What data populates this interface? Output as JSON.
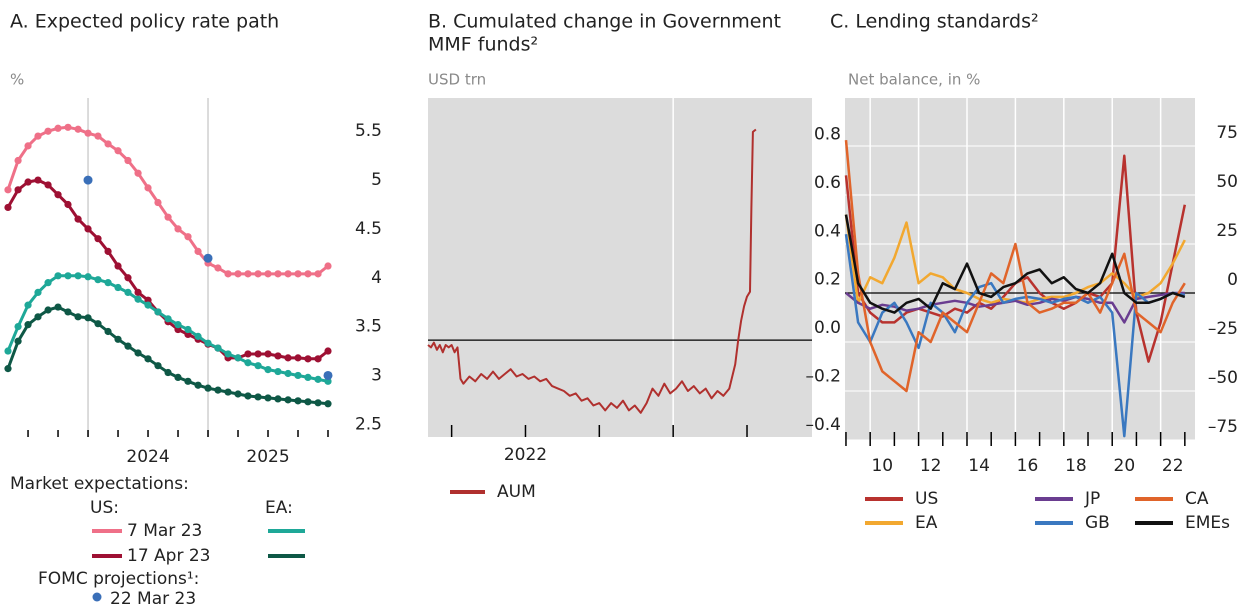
{
  "chart_data": [
    {
      "type": "line",
      "title": [
        "A.  Expected policy rate path"
      ],
      "y_unit": "%",
      "plot_bg": "#ffffff",
      "grid_color": "#d0d0d0",
      "markers": true,
      "xlim": [
        2023.333,
        2026.1
      ],
      "ylim": [
        2.37,
        5.84
      ],
      "xticks": [
        2023.5,
        2023.75,
        2024,
        2024.25,
        2024.5,
        2024.75,
        2025,
        2025.25,
        2025.5,
        2025.75,
        2026
      ],
      "xtick_labels": [
        {
          "value": 2024.5,
          "label": "2024"
        },
        {
          "value": 2025.5,
          "label": "2025"
        }
      ],
      "xgrid": [
        2024,
        2025
      ],
      "yticks": [
        2.5,
        3,
        3.5,
        4,
        4.5,
        5,
        5.5
      ],
      "x": [
        2023.333,
        2023.417,
        2023.5,
        2023.583,
        2023.667,
        2023.75,
        2023.833,
        2023.917,
        2024,
        2024.083,
        2024.167,
        2024.25,
        2024.333,
        2024.417,
        2024.5,
        2024.583,
        2024.667,
        2024.75,
        2024.833,
        2024.917,
        2025,
        2025.083,
        2025.167,
        2025.25,
        2025.333,
        2025.417,
        2025.5,
        2025.583,
        2025.667,
        2025.75,
        2025.833,
        2025.917,
        2026
      ],
      "legend_title": "Market expectations:",
      "legend_groups": [
        "US:",
        "EA:"
      ],
      "series": [
        {
          "name": "7 Mar 23",
          "color": "#ef7088",
          "values": [
            4.9,
            5.2,
            5.35,
            5.45,
            5.5,
            5.53,
            5.54,
            5.52,
            5.48,
            5.45,
            5.37,
            5.3,
            5.2,
            5.07,
            4.92,
            4.77,
            4.62,
            4.5,
            4.42,
            4.27,
            4.15,
            4.1,
            4.04,
            4.04,
            4.04,
            4.04,
            4.04,
            4.04,
            4.04,
            4.04,
            4.04,
            4.04,
            4.12
          ]
        },
        {
          "name": "17 Apr 23",
          "color": "#9e1033",
          "values": [
            4.72,
            4.9,
            4.98,
            5.0,
            4.95,
            4.85,
            4.75,
            4.6,
            4.5,
            4.4,
            4.27,
            4.12,
            4.0,
            3.85,
            3.77,
            3.65,
            3.55,
            3.47,
            3.42,
            3.37,
            3.32,
            3.28,
            3.18,
            3.18,
            3.22,
            3.22,
            3.22,
            3.2,
            3.18,
            3.18,
            3.17,
            3.17,
            3.25
          ]
        },
        {
          "color": "#1ea898",
          "values": [
            3.25,
            3.5,
            3.72,
            3.85,
            3.95,
            4.02,
            4.02,
            4.02,
            4.01,
            3.98,
            3.95,
            3.9,
            3.85,
            3.78,
            3.72,
            3.65,
            3.58,
            3.52,
            3.47,
            3.4,
            3.33,
            3.28,
            3.22,
            3.18,
            3.13,
            3.1,
            3.06,
            3.04,
            3.02,
            3.0,
            2.98,
            2.96,
            2.94
          ]
        },
        {
          "color": "#0e5846",
          "values": [
            3.07,
            3.35,
            3.52,
            3.6,
            3.67,
            3.7,
            3.65,
            3.6,
            3.59,
            3.53,
            3.45,
            3.37,
            3.3,
            3.23,
            3.17,
            3.1,
            3.03,
            2.98,
            2.94,
            2.9,
            2.87,
            2.85,
            2.83,
            2.81,
            2.79,
            2.78,
            2.77,
            2.76,
            2.75,
            2.74,
            2.73,
            2.72,
            2.71
          ]
        }
      ],
      "fomc": {
        "legend_title": "FOMC projections¹:",
        "name": "22 Mar 23",
        "color": "#3a6fb8",
        "x": [
          2024,
          2025,
          2026
        ],
        "values": [
          5.0,
          4.2,
          3.0
        ]
      }
    },
    {
      "type": "line",
      "title": [
        "B. Cumulated change in Government",
        "MMF funds²"
      ],
      "y_unit": "USD trn",
      "plot_bg": "#dcdcdc",
      "grid_color": "#ffffff",
      "zero_line": true,
      "xlim": [
        2022.17,
        2023.47
      ],
      "ylim": [
        -0.4,
        1.0
      ],
      "xticks": [
        2022.25,
        2022.5,
        2022.75,
        2023,
        2023.25
      ],
      "xtick_labels": [
        {
          "value": 2022.5,
          "label": "2022"
        }
      ],
      "xgrid": [
        2023
      ],
      "yticks": [
        {
          "value": -0.4,
          "label": "–0.4"
        },
        {
          "value": -0.2,
          "label": "–0.2"
        },
        {
          "value": 0,
          "label": "0.0"
        },
        0.2,
        0.4,
        0.6,
        0.8
      ],
      "x": [
        2022.17,
        2022.18,
        2022.19,
        2022.2,
        2022.21,
        2022.22,
        2022.23,
        2022.24,
        2022.25,
        2022.26,
        2022.27,
        2022.28,
        2022.29,
        2022.31,
        2022.33,
        2022.35,
        2022.37,
        2022.39,
        2022.41,
        2022.43,
        2022.45,
        2022.47,
        2022.49,
        2022.51,
        2022.53,
        2022.55,
        2022.57,
        2022.59,
        2022.61,
        2022.63,
        2022.65,
        2022.67,
        2022.69,
        2022.71,
        2022.73,
        2022.75,
        2022.77,
        2022.79,
        2022.81,
        2022.83,
        2022.85,
        2022.87,
        2022.89,
        2022.91,
        2022.93,
        2022.95,
        2022.97,
        2022.99,
        2023.01,
        2023.03,
        2023.05,
        2023.07,
        2023.09,
        2023.11,
        2023.13,
        2023.15,
        2023.17,
        2023.19,
        2023.21,
        2023.22,
        2023.23,
        2023.24,
        2023.25,
        2023.26,
        2023.265,
        2023.27,
        2023.28
      ],
      "series": [
        {
          "name": "AUM",
          "color": "#b0302e",
          "values": [
            -0.02,
            -0.03,
            -0.01,
            -0.04,
            -0.02,
            -0.05,
            -0.02,
            -0.03,
            -0.02,
            -0.05,
            -0.03,
            -0.16,
            -0.18,
            -0.15,
            -0.17,
            -0.14,
            -0.16,
            -0.13,
            -0.16,
            -0.14,
            -0.12,
            -0.15,
            -0.14,
            -0.16,
            -0.15,
            -0.17,
            -0.16,
            -0.19,
            -0.2,
            -0.21,
            -0.23,
            -0.22,
            -0.25,
            -0.24,
            -0.27,
            -0.26,
            -0.29,
            -0.26,
            -0.28,
            -0.25,
            -0.29,
            -0.27,
            -0.3,
            -0.26,
            -0.2,
            -0.23,
            -0.18,
            -0.22,
            -0.2,
            -0.17,
            -0.21,
            -0.19,
            -0.22,
            -0.2,
            -0.24,
            -0.21,
            -0.23,
            -0.2,
            -0.1,
            0,
            0.08,
            0.14,
            0.18,
            0.2,
            0.55,
            0.86,
            0.87
          ]
        }
      ]
    },
    {
      "type": "line",
      "title": [
        "C. Lending standards²"
      ],
      "y_unit": "Net balance, in %",
      "plot_bg": "#dcdcdc",
      "grid_color": "#ffffff",
      "zero_line": true,
      "ygrid": true,
      "xlim": [
        2008.96,
        2023.42
      ],
      "ylim": [
        -75,
        99.5
      ],
      "xticks": [
        2009,
        2010,
        2011,
        2012,
        2013,
        2014,
        2015,
        2016,
        2017,
        2018,
        2019,
        2020,
        2021,
        2022,
        2023
      ],
      "xtick_labels": [
        {
          "value": 2010.5,
          "label": "10"
        },
        {
          "value": 2012.5,
          "label": "12"
        },
        {
          "value": 2014.5,
          "label": "14"
        },
        {
          "value": 2016.5,
          "label": "16"
        },
        {
          "value": 2018.5,
          "label": "18"
        },
        {
          "value": 2020.5,
          "label": "20"
        },
        {
          "value": 2022.5,
          "label": "22"
        }
      ],
      "xgrid": [
        2010,
        2012,
        2014,
        2016,
        2018,
        2020,
        2022
      ],
      "yticks": [
        {
          "value": -75,
          "label": "–75"
        },
        {
          "value": -50,
          "label": "–50"
        },
        {
          "value": -25,
          "label": "–25"
        },
        0,
        25,
        50,
        75
      ],
      "x": [
        2009,
        2009.5,
        2010,
        2010.5,
        2011,
        2011.5,
        2012,
        2012.5,
        2013,
        2013.5,
        2014,
        2014.5,
        2015,
        2015.5,
        2016,
        2016.5,
        2017,
        2017.5,
        2018,
        2018.5,
        2019,
        2019.5,
        2020,
        2020.5,
        2021,
        2021.5,
        2022,
        2022.5,
        2023
      ],
      "series": [
        {
          "name": "US",
          "color": "#b8322e",
          "values": [
            60,
            0,
            -10,
            -15,
            -15,
            -10,
            -8,
            -10,
            -12,
            -8,
            -10,
            -5,
            -8,
            -2,
            5,
            8,
            0,
            -5,
            -8,
            -5,
            0,
            -2,
            5,
            70,
            -10,
            -35,
            -15,
            15,
            45
          ]
        },
        {
          "name": "EA",
          "color": "#f2a830",
          "values": [
            40,
            -5,
            8,
            5,
            18,
            36,
            5,
            10,
            8,
            2,
            0,
            -3,
            -5,
            -3,
            -4,
            -5,
            -3,
            -2,
            -2,
            0,
            3,
            5,
            10,
            5,
            -2,
            0,
            5,
            15,
            27
          ]
        },
        {
          "name": "JP",
          "color": "#6a3d90",
          "values": [
            0,
            -5,
            -8,
            -6,
            -7,
            -9,
            -8,
            -6,
            -5,
            -4,
            -5,
            -7,
            -6,
            -5,
            -4,
            -6,
            -5,
            -3,
            -4,
            -2,
            -3,
            -5,
            -5,
            -15,
            -3,
            -2,
            -1,
            0,
            0
          ]
        },
        {
          "name": "GB",
          "color": "#3a78c0",
          "values": [
            30,
            -15,
            -25,
            -10,
            -5,
            -15,
            -28,
            -5,
            -10,
            -20,
            -5,
            3,
            5,
            -5,
            -3,
            -2,
            -3,
            -5,
            -3,
            -2,
            -5,
            -2,
            -10,
            -73,
            0,
            -5,
            -3,
            0,
            -1
          ]
        },
        {
          "name": "CA",
          "color": "#e0642a",
          "values": [
            78,
            10,
            -25,
            -40,
            -45,
            -50,
            -20,
            -25,
            -10,
            -15,
            -20,
            -5,
            10,
            5,
            25,
            -5,
            -10,
            -8,
            -5,
            -5,
            0,
            -10,
            5,
            20,
            -10,
            -15,
            -20,
            -5,
            5
          ]
        },
        {
          "name": "EMEs",
          "color": "#111111",
          "values": [
            40,
            5,
            -5,
            -8,
            -10,
            -5,
            -3,
            -8,
            5,
            2,
            15,
            0,
            -2,
            3,
            5,
            10,
            12,
            5,
            8,
            2,
            0,
            5,
            20,
            0,
            -5,
            -5,
            -3,
            0,
            -2
          ]
        }
      ]
    }
  ]
}
